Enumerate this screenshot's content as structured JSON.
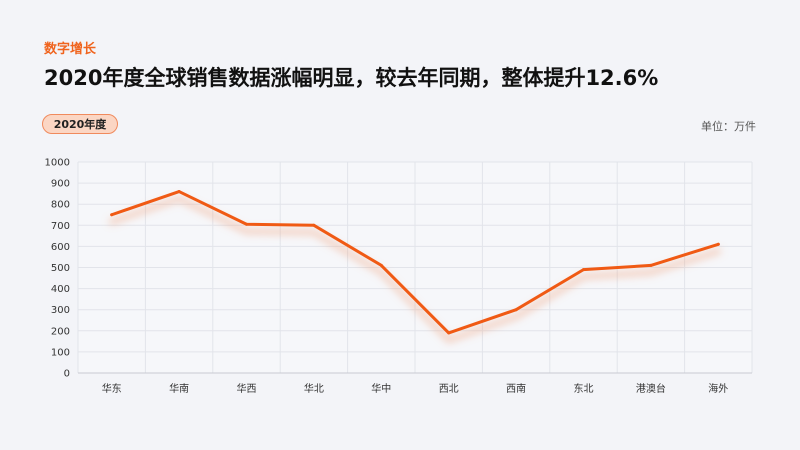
{
  "header": {
    "kicker": "数字增长",
    "headline": "2020年度全球销售数据涨幅明显，较去年同期，整体提升12.6%",
    "badge": "2020年度",
    "unit": "单位：万件"
  },
  "colors": {
    "accent": "#f0641e",
    "line": "#f05a14",
    "grid": "#e2e4ea",
    "plot_bg": "#f6f7fa"
  },
  "chart_data": {
    "type": "line",
    "title": "",
    "xlabel": "",
    "ylabel": "",
    "categories": [
      "华东",
      "华南",
      "华西",
      "华北",
      "华中",
      "西北",
      "西南",
      "东北",
      "港澳台",
      "海外"
    ],
    "series": [
      {
        "values": [
          750,
          860,
          705,
          700,
          510,
          190,
          300,
          490,
          510,
          610
        ]
      }
    ],
    "ylim": [
      0,
      1000
    ],
    "yticks": [
      0,
      100,
      200,
      300,
      400,
      500,
      600,
      700,
      800,
      900,
      1000
    ],
    "grid": true,
    "legend": "none"
  }
}
